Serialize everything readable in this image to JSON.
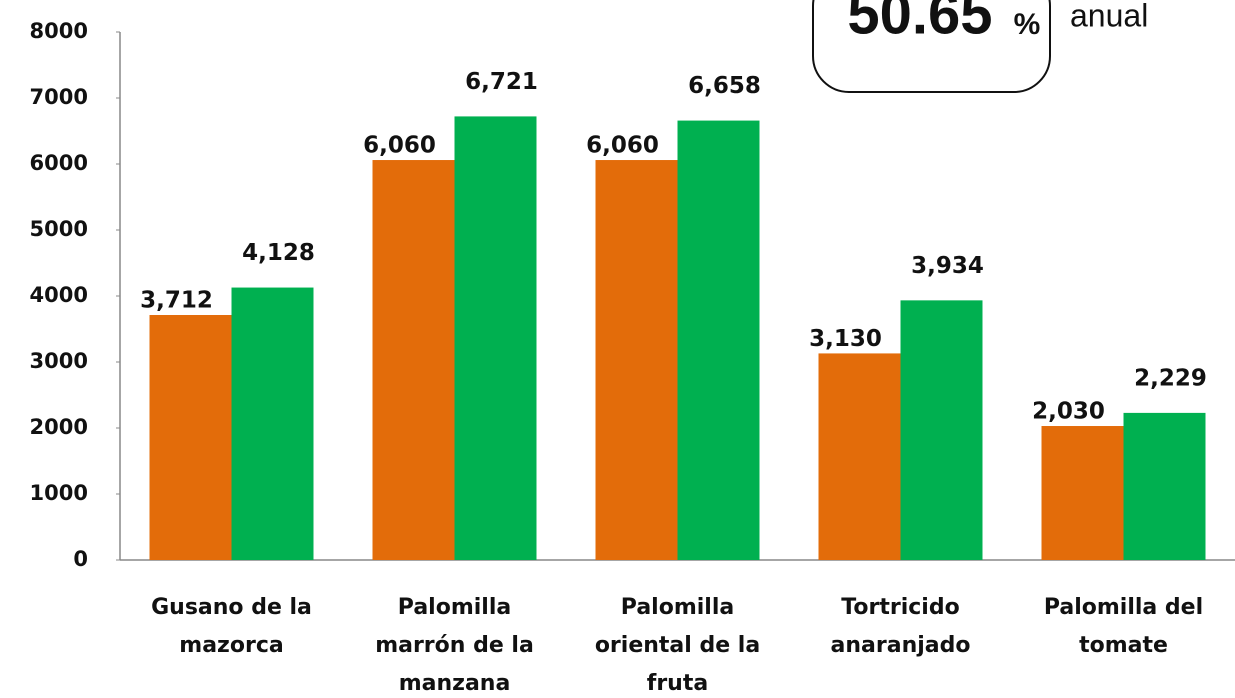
{
  "chart_data": {
    "type": "bar",
    "categories": [
      "Gusano de la mazorca",
      "Palomilla marrón de la manzana",
      "Palomilla oriental de la fruta",
      "Tortricido anaranjado",
      "Palomilla del tomate"
    ],
    "series": [
      {
        "color": "#e36c0a",
        "values": [
          3712,
          6060,
          6060,
          3130,
          2030
        ],
        "value_labels": [
          "3,712",
          "6,060",
          "6,060",
          "3,130",
          "2,030"
        ]
      },
      {
        "color": "#00b050",
        "values": [
          4128,
          6721,
          6658,
          3934,
          2229
        ],
        "value_labels": [
          "4,128",
          "6,721",
          "6,658",
          "3,934",
          "2,229"
        ]
      }
    ],
    "ylim": [
      0,
      8000
    ],
    "yticks": [
      0,
      1000,
      2000,
      3000,
      4000,
      5000,
      6000,
      7000,
      8000
    ],
    "grid": false,
    "annotation": {
      "number": "50.65",
      "symbol": "%",
      "note": "anual"
    }
  }
}
